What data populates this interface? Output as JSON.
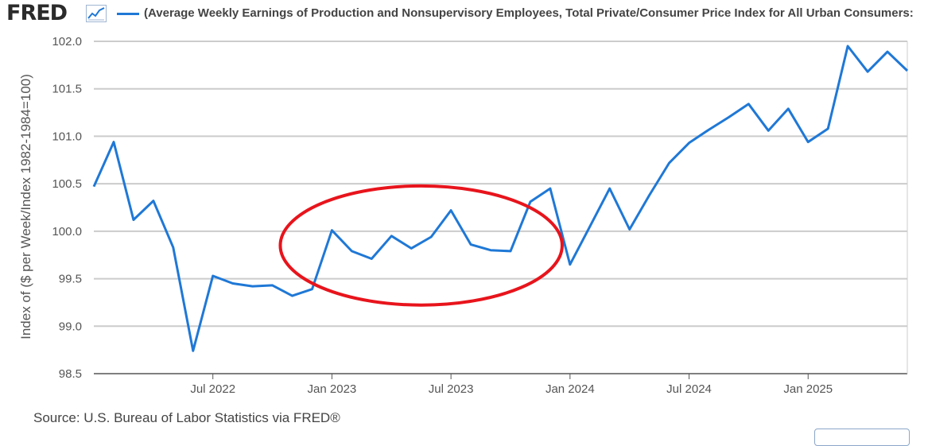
{
  "header": {
    "logo_text": "FRED",
    "series_title": "(Average Weekly Earnings of Production and Nonsupervisory Employees, Total Private/Consumer Price Index for All Urban Consumers:"
  },
  "footer": {
    "source": "Source: U.S. Bureau of Labor Statistics via FRED®"
  },
  "colors": {
    "line": "#1f78d6",
    "annotation": "#e8141c",
    "grid": "#cccccc"
  },
  "chart_data": {
    "type": "line",
    "ylabel": "Index of ($ per Week/Index 1982-1984=100)",
    "ylim": [
      98.5,
      102.0
    ],
    "yticks": [
      "98.5",
      "99.0",
      "99.5",
      "100.0",
      "100.5",
      "101.0",
      "101.5",
      "102.0"
    ],
    "xticks": [
      {
        "label": "Jul 2022",
        "date": "2022-07"
      },
      {
        "label": "Jan 2023",
        "date": "2023-01"
      },
      {
        "label": "Jul 2023",
        "date": "2023-07"
      },
      {
        "label": "Jan 2024",
        "date": "2024-01"
      },
      {
        "label": "Jul 2024",
        "date": "2024-07"
      },
      {
        "label": "Jan 2025",
        "date": "2025-01"
      }
    ],
    "x_start": "2022-01",
    "x_end": "2025-06",
    "grid": true,
    "series": [
      {
        "x": [
          "2022-01",
          "2022-02",
          "2022-03",
          "2022-04",
          "2022-05",
          "2022-06",
          "2022-07",
          "2022-08",
          "2022-09",
          "2022-10",
          "2022-11",
          "2022-12",
          "2023-01",
          "2023-02",
          "2023-03",
          "2023-04",
          "2023-05",
          "2023-06",
          "2023-07",
          "2023-08",
          "2023-09",
          "2023-10",
          "2023-11",
          "2023-12",
          "2024-01",
          "2024-02",
          "2024-03",
          "2024-04",
          "2024-05",
          "2024-06",
          "2024-07",
          "2024-08",
          "2024-09",
          "2024-10",
          "2024-11",
          "2024-12",
          "2025-01",
          "2025-02",
          "2025-03",
          "2025-04",
          "2025-05",
          "2025-06"
        ],
        "values": [
          100.47,
          100.94,
          100.12,
          100.32,
          99.83,
          98.74,
          99.53,
          99.45,
          99.42,
          99.43,
          99.32,
          99.39,
          100.01,
          99.79,
          99.71,
          99.95,
          99.82,
          99.94,
          100.22,
          99.86,
          99.8,
          99.79,
          100.31,
          100.45,
          99.65,
          100.05,
          100.45,
          100.02,
          100.38,
          100.72,
          100.93,
          101.07,
          101.2,
          101.34,
          101.06,
          101.29,
          100.94,
          101.08,
          101.95,
          101.68,
          101.89,
          101.69
        ]
      }
    ],
    "annotation": {
      "shape": "ellipse",
      "from": "2022-12",
      "to": "2023-11"
    }
  }
}
